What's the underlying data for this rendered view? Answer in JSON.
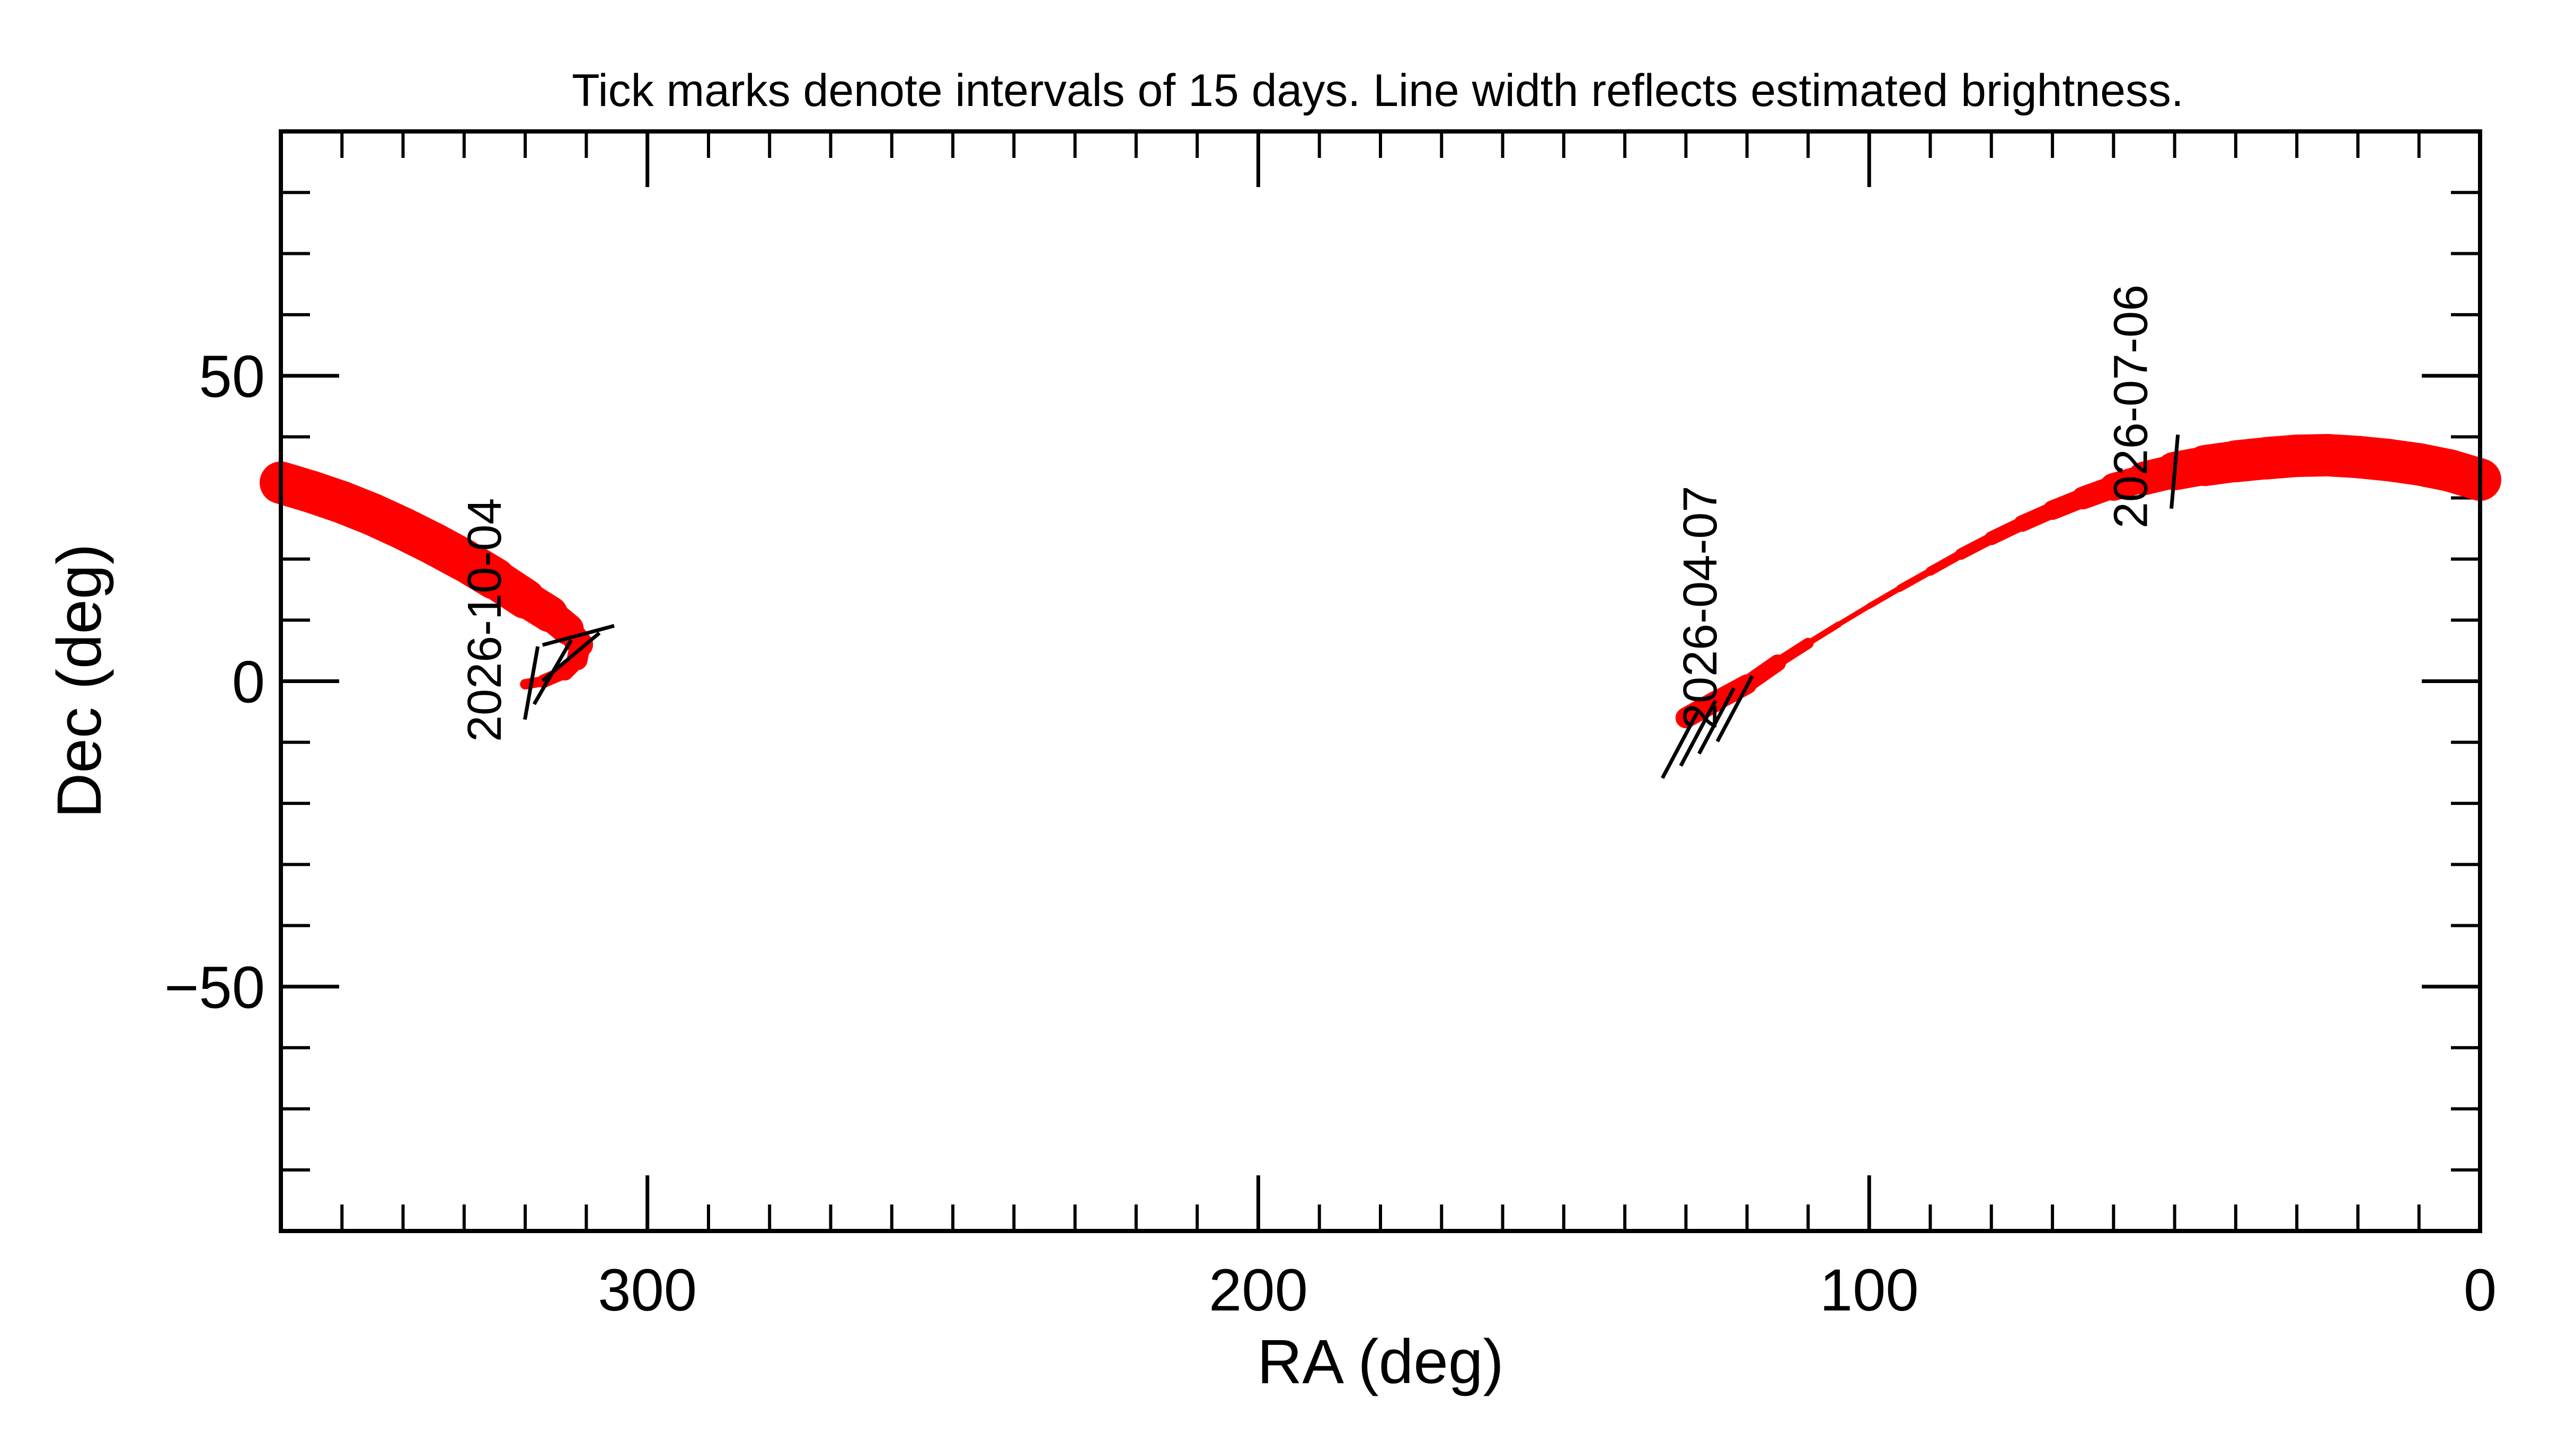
{
  "chart_data": {
    "type": "line",
    "title": "Tick marks denote intervals of 15 days.  Line width reflects estimated brightness.",
    "xlabel": "RA (deg)",
    "ylabel": "Dec (deg)",
    "xlim": [
      360,
      0
    ],
    "ylim": [
      -90,
      90
    ],
    "xticks": [
      300,
      200,
      100,
      0
    ],
    "yticks": [
      50,
      0,
      -50
    ],
    "x_minor_step": 10,
    "y_minor_step": 10,
    "grid": false,
    "line_color": "#ff0000",
    "series": [
      {
        "ra": [
          0,
          5,
          10,
          15,
          20,
          25,
          30,
          35,
          40,
          45,
          50,
          55,
          60,
          65,
          70,
          75,
          80,
          85,
          90,
          95,
          100,
          105,
          110,
          115,
          120,
          125,
          130
        ],
        "dec": [
          33,
          34.5,
          35.5,
          36.2,
          36.7,
          37,
          36.9,
          36.5,
          36,
          35.3,
          34.4,
          33.2,
          31.8,
          30,
          28,
          25.8,
          23.4,
          20.8,
          18,
          15.2,
          12.3,
          9.3,
          6.2,
          3,
          -0.5,
          -3.2,
          -6
        ],
        "brightness": [
          1,
          1,
          1,
          1,
          1,
          1,
          1,
          1,
          0.98,
          0.95,
          0.85,
          0.7,
          0.55,
          0.45,
          0.38,
          0.3,
          0.24,
          0.18,
          0.12,
          0.08,
          0.05,
          0.05,
          0.1,
          0.3,
          0.4,
          0.45,
          0.45
        ]
      },
      {
        "ra": [
          360,
          355,
          350,
          345,
          340,
          335,
          330,
          325,
          320,
          316,
          313,
          311,
          311.5,
          313.5,
          317,
          320
        ],
        "dec": [
          32.5,
          31,
          29.3,
          27.3,
          25,
          22.5,
          19.8,
          16.8,
          13.5,
          11,
          8.5,
          6,
          3.5,
          1.5,
          0,
          -0.5
        ],
        "brightness": [
          1,
          1,
          1,
          1,
          1,
          1,
          1,
          0.98,
          0.9,
          0.8,
          0.65,
          0.5,
          0.4,
          0.3,
          0.22,
          0.15
        ]
      }
    ],
    "tick_marks": [
      {
        "ra": 131,
        "dec": -10.5,
        "angle": 62
      },
      {
        "ra": 128,
        "dec": -8.5,
        "angle": 62
      },
      {
        "ra": 125,
        "dec": -6.5,
        "angle": 62
      },
      {
        "ra": 122,
        "dec": -4.5,
        "angle": 62
      },
      {
        "ra": 50,
        "dec": 34.3,
        "angle": 85
      },
      {
        "ra": 319,
        "dec": -0.3,
        "angle": 80
      },
      {
        "ra": 315.5,
        "dec": 1.5,
        "angle": 60
      },
      {
        "ra": 312.5,
        "dec": 4,
        "angle": 40
      },
      {
        "ra": 311.3,
        "dec": 7.5,
        "angle": 15
      }
    ],
    "annotations": [
      {
        "text": "2026-10-04",
        "ra": 324,
        "dec": 30,
        "anchor": "end"
      },
      {
        "text": "2026-04-07",
        "ra": 125,
        "dec": 32,
        "anchor": "end"
      },
      {
        "text": "2026-07-06",
        "ra": 54.5,
        "dec": 25,
        "anchor": "start"
      }
    ]
  }
}
